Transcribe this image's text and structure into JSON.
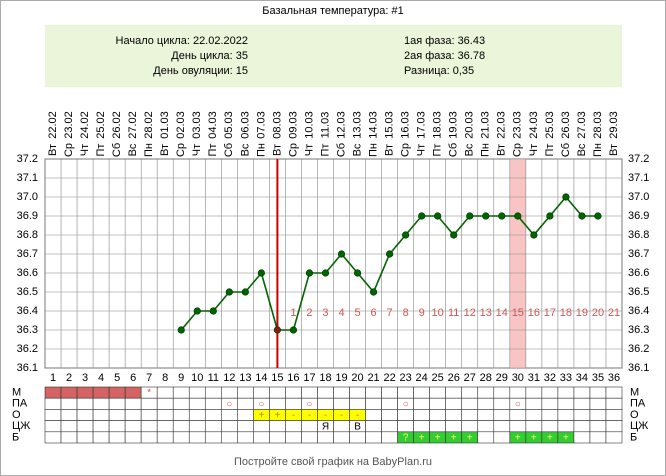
{
  "header": {
    "title": "Базальная температура: #1"
  },
  "summary": {
    "left": [
      "Начало цикла: 22.02.2022",
      "День цикла: 35",
      "День овуляции: 15"
    ],
    "right": [
      "1ая фаза: 36.43",
      "2ая фаза: 36.78",
      "Разница: 0,35"
    ]
  },
  "chart_data": {
    "type": "line",
    "categories": [
      "1",
      "2",
      "3",
      "4",
      "5",
      "6",
      "7",
      "8",
      "9",
      "10",
      "11",
      "12",
      "13",
      "14",
      "15",
      "16",
      "17",
      "18",
      "19",
      "20",
      "21",
      "22",
      "23",
      "24",
      "25",
      "26",
      "27",
      "28",
      "29",
      "30",
      "31",
      "32",
      "33",
      "34",
      "35",
      "36"
    ],
    "dates": [
      "22.02",
      "23.02",
      "24.02",
      "25.02",
      "26.02",
      "27.02",
      "28.02",
      "01.03",
      "02.03",
      "03.03",
      "04.03",
      "05.03",
      "06.03",
      "07.03",
      "08.03",
      "09.03",
      "10.03",
      "11.03",
      "12.03",
      "13.03",
      "14.03",
      "15.03",
      "16.03",
      "17.03",
      "18.03",
      "19.03",
      "20.03",
      "21.03",
      "22.03",
      "23.03",
      "24.03",
      "25.03",
      "26.03",
      "27.03",
      "28.03",
      "29.03"
    ],
    "weekdays": [
      "Вт",
      "Ср",
      "Чт",
      "Пт",
      "Сб",
      "Вс",
      "Пн",
      "Вт",
      "Ср",
      "Чт",
      "Пт",
      "Сб",
      "Вс",
      "Пн",
      "Вт",
      "Ср",
      "Чт",
      "Пт",
      "Сб",
      "Вс",
      "Пн",
      "Вт",
      "Ср",
      "Чт",
      "Пт",
      "Сб",
      "Вс",
      "Пн",
      "Вт",
      "Ср",
      "Чт",
      "Пт",
      "Сб",
      "Вс",
      "Пн",
      "Вт"
    ],
    "values": [
      null,
      null,
      null,
      null,
      null,
      null,
      null,
      null,
      36.3,
      36.4,
      36.4,
      36.5,
      36.5,
      36.6,
      36.3,
      36.3,
      36.6,
      36.6,
      36.7,
      36.6,
      36.5,
      36.7,
      36.8,
      36.9,
      36.9,
      36.8,
      36.9,
      36.9,
      36.9,
      36.9,
      36.8,
      36.9,
      37.0,
      36.9,
      36.9,
      null
    ],
    "color": "#006400",
    "phase_labels": [
      null,
      null,
      null,
      null,
      null,
      null,
      null,
      null,
      null,
      null,
      null,
      null,
      null,
      null,
      null,
      1,
      2,
      3,
      4,
      5,
      6,
      7,
      8,
      9,
      10,
      11,
      12,
      13,
      14,
      15,
      16,
      17,
      18,
      19,
      20,
      21
    ],
    "phase_label_color": "#c85a5a",
    "ovulation_day": 15,
    "ovulation_color": "#cc0000",
    "highlight_day": 30,
    "highlight_color": "#f8c4c4",
    "ylim": [
      36.1,
      37.2
    ],
    "yticks": [
      36.1,
      36.2,
      36.3,
      36.4,
      36.5,
      36.6,
      36.7,
      36.8,
      36.9,
      {
        "value": 37,
        "label": "37.0"
      },
      37.1,
      37.2
    ],
    "grid": true
  },
  "table": {
    "rows": [
      {
        "label": "М",
        "cells": [
          null,
          null,
          null,
          null,
          null,
          null,
          "*",
          null,
          null,
          null,
          null,
          null,
          null,
          null,
          null,
          null,
          null,
          null,
          null,
          null,
          null,
          null,
          null,
          null,
          null,
          null,
          null,
          null,
          null,
          null,
          null,
          null,
          null,
          null,
          null,
          null
        ],
        "highlight_days": [
          1,
          2,
          3,
          4,
          5,
          6
        ],
        "highlight_color": "#d46464",
        "text_color": "#e05050"
      },
      {
        "label": "ПА",
        "cells": [
          null,
          null,
          null,
          null,
          null,
          null,
          null,
          null,
          null,
          null,
          null,
          "○",
          null,
          "○",
          null,
          null,
          "○",
          null,
          null,
          null,
          null,
          null,
          "○",
          null,
          null,
          null,
          null,
          null,
          null,
          "○",
          null,
          null,
          null,
          null,
          null,
          null
        ],
        "highlight_days": [],
        "highlight_color": "#ffffff",
        "text_color": "#e05050"
      },
      {
        "label": "О",
        "cells": [
          null,
          null,
          null,
          null,
          null,
          null,
          null,
          null,
          null,
          null,
          null,
          null,
          null,
          "+",
          "+",
          "-",
          "-",
          "-",
          "-",
          "-",
          null,
          null,
          null,
          null,
          null,
          null,
          null,
          null,
          null,
          null,
          null,
          null,
          null,
          null,
          null,
          null
        ],
        "highlight_days": [
          14,
          15,
          16,
          17,
          18,
          19,
          20
        ],
        "highlight_color": "#ffff00",
        "text_color": "#c08000"
      },
      {
        "label": "ЦЖ",
        "cells": [
          null,
          null,
          null,
          null,
          null,
          null,
          null,
          null,
          null,
          null,
          null,
          null,
          null,
          null,
          null,
          null,
          null,
          "Я",
          null,
          "В",
          null,
          null,
          null,
          null,
          null,
          null,
          null,
          null,
          null,
          null,
          null,
          null,
          null,
          null,
          null,
          null
        ],
        "highlight_days": [],
        "highlight_color": "#ffffff",
        "text_color": "#000000"
      },
      {
        "label": "Б",
        "cells": [
          null,
          null,
          null,
          null,
          null,
          null,
          null,
          null,
          null,
          null,
          null,
          null,
          null,
          null,
          null,
          null,
          null,
          null,
          null,
          null,
          null,
          null,
          "?",
          "+",
          "+",
          "+",
          "+",
          null,
          null,
          "+",
          "+",
          "+",
          "+",
          null,
          null,
          null
        ],
        "highlight_days": [
          23,
          24,
          25,
          26,
          27,
          30,
          31,
          32,
          33
        ],
        "highlight_color": "#33cc33",
        "text_color": "#ffff66"
      }
    ]
  },
  "footer": {
    "text": "Постройте свой график на BabyPlan.ru"
  }
}
